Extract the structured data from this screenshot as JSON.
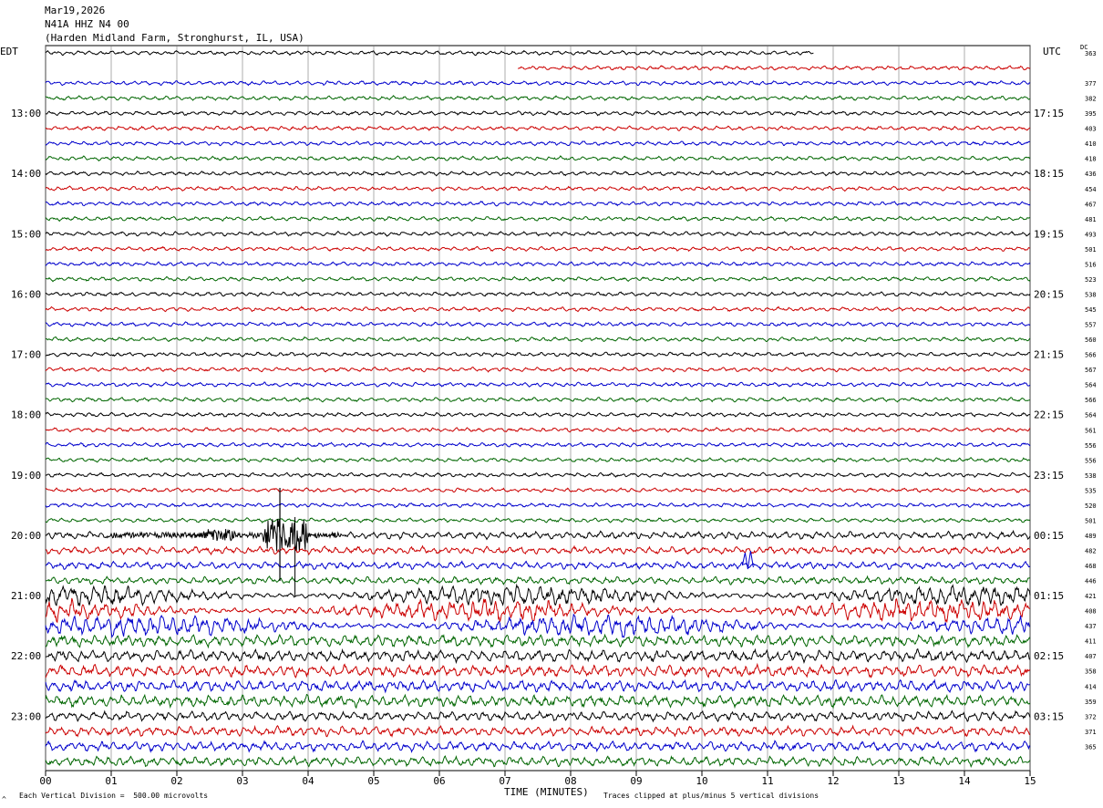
{
  "header": {
    "date": "Mar19,2026",
    "station": "N41A HHZ N4 00",
    "location": "(Harden Midland Farm, Stronghurst, IL, USA)"
  },
  "labels": {
    "left_tz": "EDT",
    "right_tz": "UTC",
    "dc_label": "DC",
    "x_axis": "TIME (MINUTES)",
    "vertical_division": "Each Vertical Division =  500.00 microvolts",
    "clipped": "Traces clipped at plus/minus 5 vertical divisions",
    "corner_mark": "^"
  },
  "chart_data": {
    "type": "line",
    "x_ticks": [
      "00",
      "01",
      "02",
      "03",
      "04",
      "05",
      "06",
      "07",
      "08",
      "09",
      "10",
      "11",
      "12",
      "13",
      "14",
      "15"
    ],
    "xlim": [
      0,
      15
    ],
    "left_hour_labels": [
      "13:00",
      "14:00",
      "15:00",
      "16:00",
      "17:00",
      "18:00",
      "19:00",
      "20:00",
      "21:00",
      "22:00",
      "23:00"
    ],
    "right_hour_labels": [
      "17:15",
      "18:15",
      "19:15",
      "20:15",
      "21:15",
      "22:15",
      "23:15",
      "00:15",
      "01:15",
      "02:15",
      "03:15"
    ],
    "trace_colors": [
      "#000000",
      "#cc0000",
      "#0000cc",
      "#006600"
    ],
    "dc_offsets": [
      363,
      377,
      382,
      395,
      403,
      410,
      418,
      436,
      454,
      467,
      481,
      493,
      501,
      516,
      523,
      538,
      545,
      557,
      560,
      566,
      567,
      564,
      566,
      564,
      561,
      556,
      556,
      538,
      535,
      520,
      501,
      489,
      482,
      468,
      446,
      421,
      408,
      437,
      411,
      407,
      358,
      414,
      359,
      372,
      371,
      365
    ],
    "trace_count": 48,
    "second_trace_start_minute": 7.2,
    "first_trace_end_minute": 11.7
  }
}
